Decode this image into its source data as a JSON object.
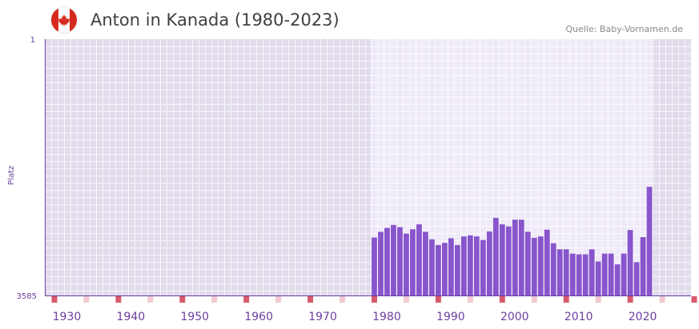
{
  "header": {
    "title": "Anton in Kanada (1980-2023)",
    "source": "Quelle: Baby-Vornamen.de",
    "flag_icon": "canada-flag-icon"
  },
  "colors": {
    "bar": "#8855cc",
    "axis_text": "#6b3fa0",
    "marker": "#d9596e",
    "marker_light": "#f2c9d1",
    "plot_dark": "#e1dbeb",
    "plot_light": "#efeaf8"
  },
  "chart_data": {
    "type": "bar",
    "title": "Anton in Kanada (1980-2023)",
    "ylabel": "Platz",
    "xlabel": "",
    "y_reversed": true,
    "ylim": [
      1,
      3585
    ],
    "y_ticks": [
      "1",
      "3585"
    ],
    "x_range": [
      1927,
      2028
    ],
    "x_ticks": [
      1930,
      1940,
      1950,
      1960,
      1970,
      1980,
      1990,
      2000,
      2010,
      2020
    ],
    "highlight_range": [
      1978,
      2022
    ],
    "x": [
      1978,
      1979,
      1980,
      1981,
      1982,
      1983,
      1984,
      1985,
      1986,
      1987,
      1988,
      1989,
      1990,
      1991,
      1992,
      1993,
      1994,
      1995,
      1996,
      1997,
      1998,
      1999,
      2000,
      2001,
      2002,
      2003,
      2004,
      2005,
      2006,
      2007,
      2008,
      2009,
      2010,
      2011,
      2012,
      2013,
      2014,
      2015,
      2016,
      2017,
      2018,
      2019,
      2020,
      2021
    ],
    "values": [
      2775,
      2695,
      2640,
      2600,
      2630,
      2720,
      2660,
      2590,
      2695,
      2800,
      2880,
      2850,
      2785,
      2880,
      2760,
      2745,
      2760,
      2810,
      2690,
      2500,
      2590,
      2620,
      2525,
      2525,
      2695,
      2780,
      2760,
      2665,
      2855,
      2940,
      2940,
      3000,
      3010,
      3010,
      2940,
      3110,
      3000,
      3000,
      3150,
      3000,
      2670,
      3120,
      2770,
      2065
    ]
  }
}
